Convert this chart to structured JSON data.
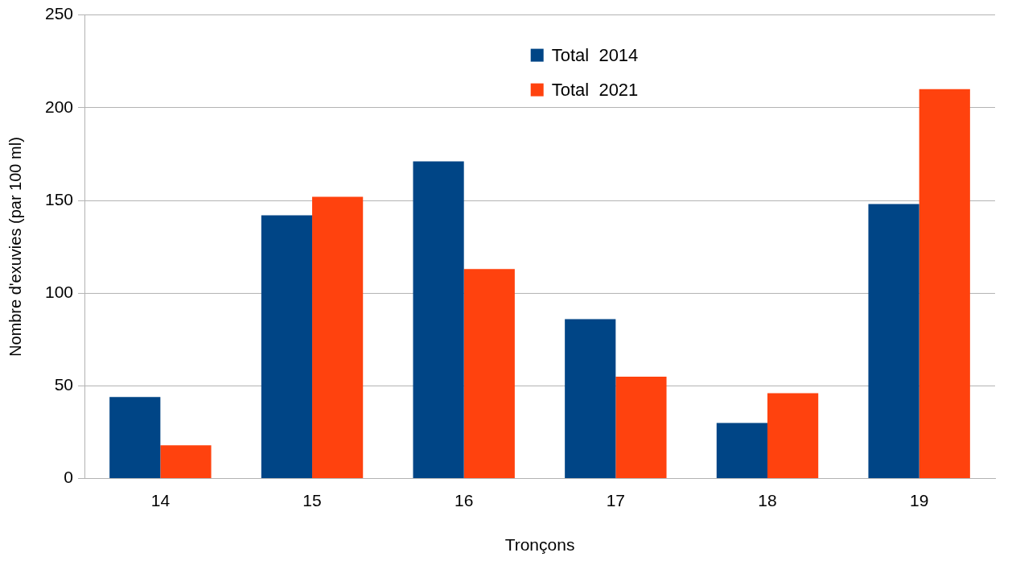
{
  "chart_data": {
    "type": "bar",
    "xlabel": "Tronçons",
    "ylabel": "Nombre d'exuvies (par 100 ml)",
    "categories": [
      "14",
      "15",
      "16",
      "17",
      "18",
      "19"
    ],
    "series": [
      {
        "name": "Total  2014",
        "color": "#004586",
        "values": [
          44,
          142,
          171,
          86,
          30,
          148
        ]
      },
      {
        "name": "Total  2021",
        "color": "#ff420e",
        "values": [
          18,
          152,
          113,
          55,
          46,
          210
        ]
      }
    ],
    "ylim": [
      0,
      250
    ],
    "yticks": [
      0,
      50,
      100,
      150,
      200,
      250
    ],
    "grid": "y",
    "legend": "top"
  }
}
